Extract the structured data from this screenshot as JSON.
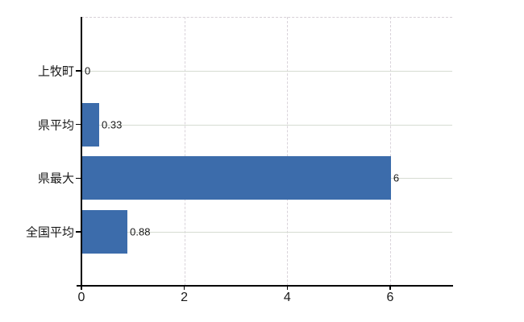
{
  "chart_data": {
    "type": "bar",
    "orientation": "horizontal",
    "title": "",
    "xlabel": "",
    "ylabel": "",
    "categories": [
      "上牧町",
      "県平均",
      "県最大",
      "全国平均"
    ],
    "values": [
      0,
      0.33,
      6,
      0.88
    ],
    "value_labels": [
      "0",
      "0.33",
      "6",
      "0.88"
    ],
    "xlim": [
      0,
      7.2
    ],
    "xticks": [
      0,
      2,
      4,
      6
    ],
    "xtick_labels": [
      "0",
      "2",
      "4",
      "6"
    ],
    "grid": true,
    "legend": "none",
    "bar_color": "#3c6cab",
    "axis_color": "#000000",
    "horizontal_grid_color": "#d6dcd2",
    "vertical_grid_color": "#d9d3da",
    "text_color": "#1a1a1a",
    "background_color": "#ffffff"
  }
}
